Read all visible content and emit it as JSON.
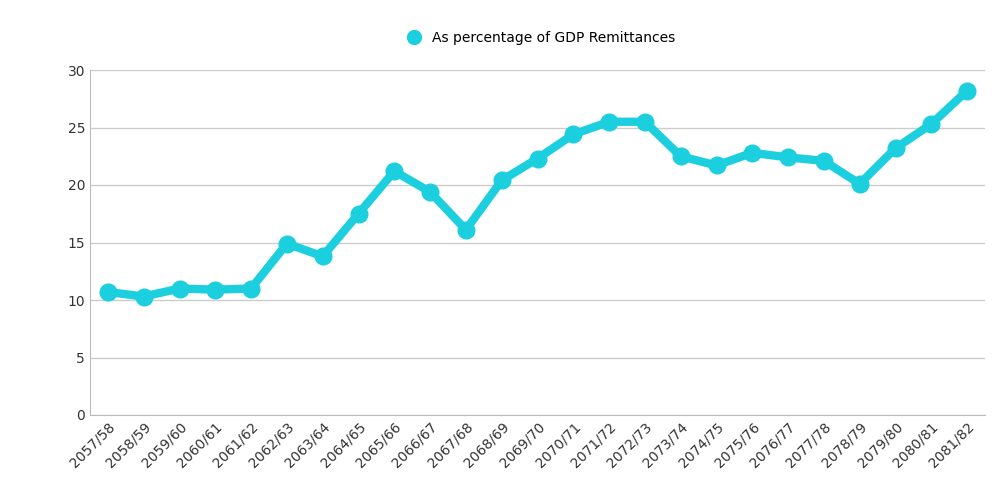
{
  "chart_data": {
    "type": "line",
    "categories": [
      "2057/58",
      "2058/59",
      "2059/60",
      "2060/61",
      "2061/62",
      "2062/63",
      "2063/64",
      "2064/65",
      "2065/66",
      "2066/67",
      "2067/68",
      "2068/69",
      "2069/70",
      "2070/71",
      "2071/72",
      "2072/73",
      "2073/74",
      "2074/75",
      "2075/76",
      "2076/77",
      "2077/78",
      "2078/79",
      "2079/80",
      "2080/81",
      "2081/82"
    ],
    "series": [
      {
        "name": "As percentage of GDP Remittances",
        "color": "#1ccfdf",
        "marker": "o",
        "line_style": "solid",
        "values": [
          10.7,
          10.3,
          11.0,
          10.9,
          11.0,
          14.9,
          13.8,
          17.5,
          21.2,
          19.4,
          16.1,
          20.4,
          22.3,
          24.4,
          25.5,
          25.5,
          22.5,
          21.7,
          22.8,
          22.4,
          22.1,
          20.1,
          23.2,
          25.3,
          28.2
        ]
      }
    ],
    "ylim": [
      0,
      30
    ],
    "yticks": [
      0,
      5,
      10,
      15,
      20,
      25,
      30
    ],
    "grid": true,
    "legend": "upper center"
  }
}
